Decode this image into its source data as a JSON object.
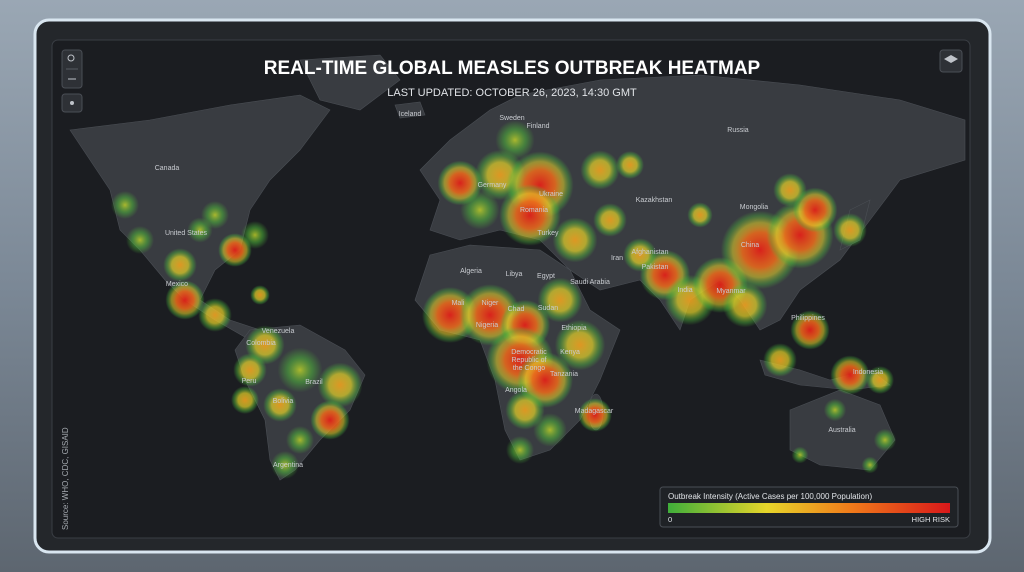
{
  "header": {
    "title": "REAL-TIME GLOBAL MEASLES OUTBREAK HEATMAP",
    "subtitle": "LAST UPDATED: OCTOBER 26, 2023, 14:30 GMT"
  },
  "map": {
    "labels": [
      "Iceland",
      "Sweden",
      "Finland",
      "Russia",
      "Canada",
      "Germany",
      "Ukraine",
      "Kazakhstan",
      "Mongolia",
      "United States",
      "Romania",
      "Turkey",
      "Afghanistan",
      "China",
      "Pakistan",
      "Iran",
      "Algeria",
      "Libya",
      "Egypt",
      "Saudi Arabia",
      "India",
      "Myanmar",
      "Mexico",
      "Mali",
      "Niger",
      "Chad",
      "Sudan",
      "Nigeria",
      "Ethiopia",
      "Philippines",
      "Venezuela",
      "Colombia",
      "Democratic",
      "Republic of",
      "the Congo",
      "Kenya",
      "Tanzania",
      "Peru",
      "Brazil",
      "Bolivia",
      "Angola",
      "Madagascar",
      "Indonesia",
      "Australia",
      "Argentina"
    ]
  },
  "legend": {
    "title": "Outbreak Intensity (Active Cases per 100,000 Population)",
    "min": 0,
    "max_label": "HIGH RISK"
  },
  "source": "Source: WHO, CDC, GISAID"
}
